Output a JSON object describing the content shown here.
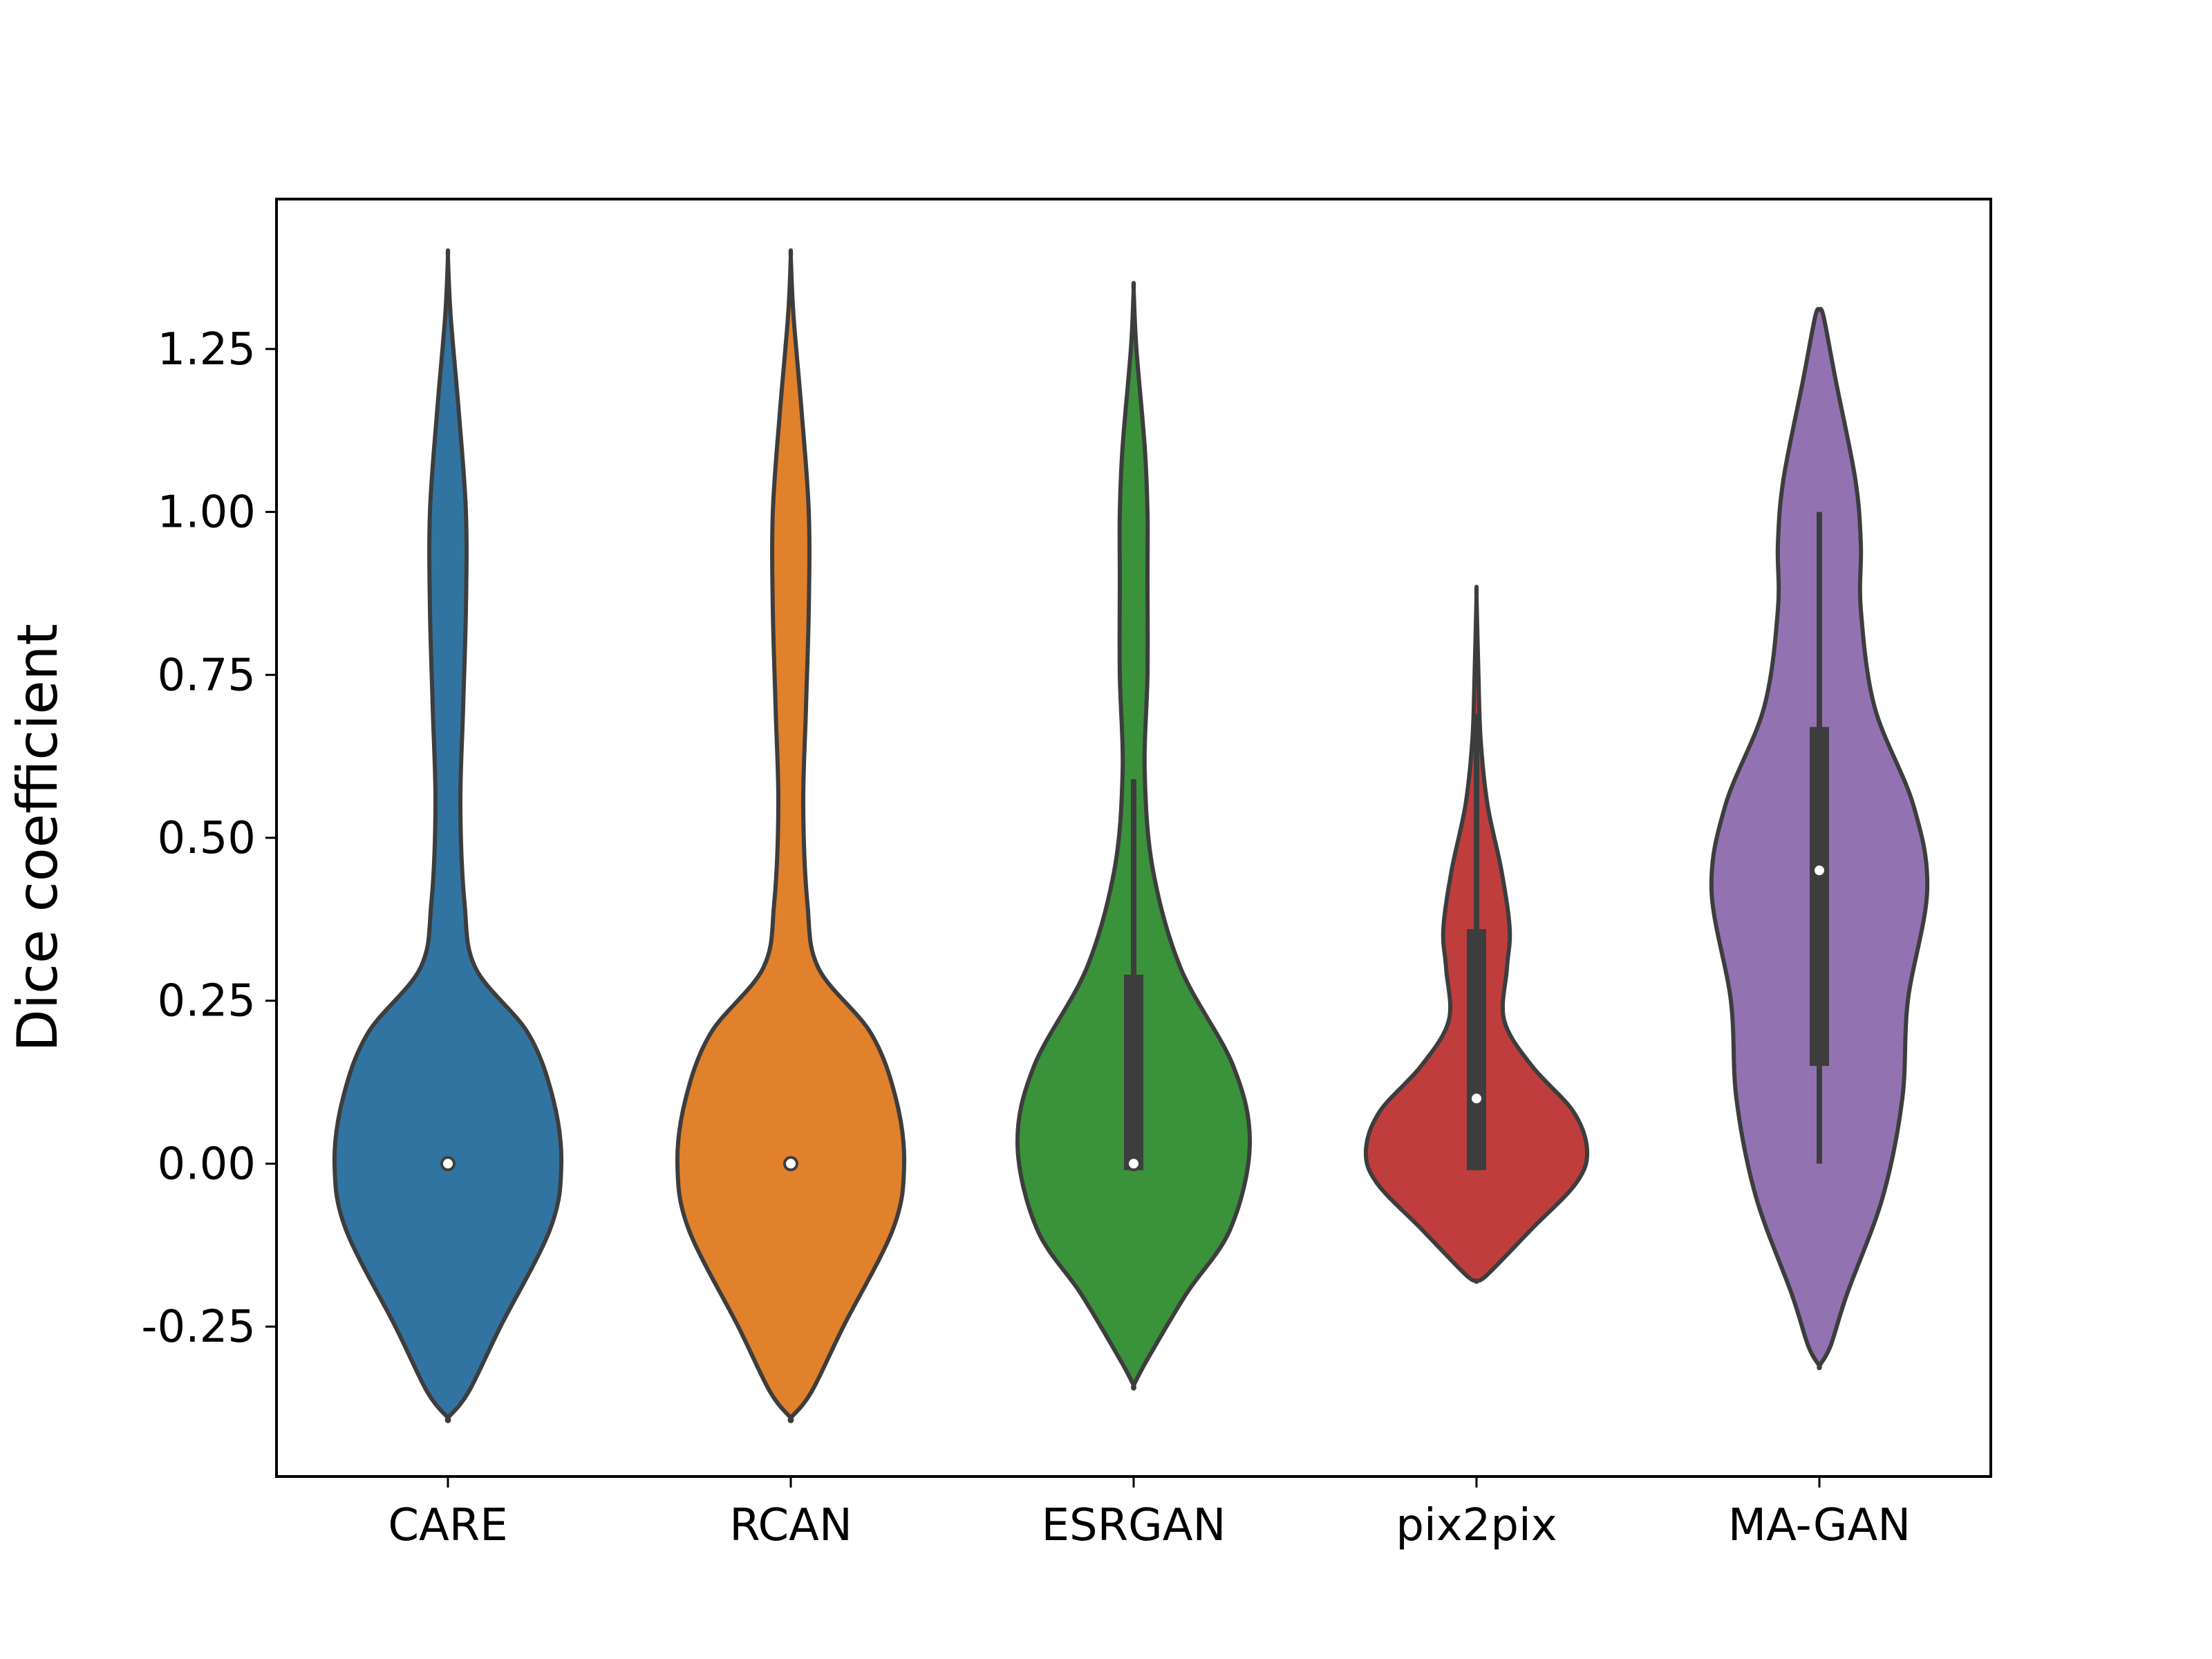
{
  "chart_data": {
    "type": "violin",
    "title": "",
    "xlabel": "",
    "ylabel": "Dice coefficient",
    "ylim": [
      -0.48,
      1.48
    ],
    "yticks": [
      -0.25,
      0.0,
      0.25,
      0.5,
      0.75,
      1.0,
      1.25
    ],
    "ytick_labels": [
      "-0.25",
      "0.00",
      "0.25",
      "0.50",
      "0.75",
      "1.00",
      "1.25"
    ],
    "categories": [
      "CARE",
      "RCAN",
      "ESRGAN",
      "pix2pix",
      "MA-GAN"
    ],
    "grid": false,
    "legend": "none",
    "series": [
      {
        "category": "CARE",
        "color": "#3274a1",
        "min": -0.39,
        "max": 1.39,
        "box": {
          "q1": 0.0,
          "median": 0.0,
          "q3": 0.0,
          "whisker_low": 0.0,
          "whisker_high": 0.0
        },
        "density": [
          [
            -0.39,
            0.0
          ],
          [
            -0.35,
            0.075
          ],
          [
            -0.25,
            0.19
          ],
          [
            -0.1,
            0.37
          ],
          [
            0.0,
            0.41
          ],
          [
            0.1,
            0.38
          ],
          [
            0.2,
            0.29
          ],
          [
            0.3,
            0.1
          ],
          [
            0.4,
            0.06
          ],
          [
            0.55,
            0.045
          ],
          [
            0.7,
            0.055
          ],
          [
            0.85,
            0.065
          ],
          [
            1.0,
            0.065
          ],
          [
            1.15,
            0.04
          ],
          [
            1.3,
            0.01
          ],
          [
            1.39,
            0.0
          ]
        ]
      },
      {
        "category": "RCAN",
        "color": "#e1812c",
        "min": -0.39,
        "max": 1.39,
        "box": {
          "q1": 0.0,
          "median": 0.0,
          "q3": 0.0,
          "whisker_low": 0.0,
          "whisker_high": 0.0
        },
        "density": [
          [
            -0.39,
            0.0
          ],
          [
            -0.35,
            0.075
          ],
          [
            -0.25,
            0.19
          ],
          [
            -0.1,
            0.37
          ],
          [
            0.0,
            0.41
          ],
          [
            0.1,
            0.38
          ],
          [
            0.2,
            0.29
          ],
          [
            0.3,
            0.1
          ],
          [
            0.4,
            0.06
          ],
          [
            0.55,
            0.045
          ],
          [
            0.7,
            0.055
          ],
          [
            0.85,
            0.065
          ],
          [
            1.0,
            0.065
          ],
          [
            1.15,
            0.04
          ],
          [
            1.3,
            0.01
          ],
          [
            1.39,
            0.0
          ]
        ]
      },
      {
        "category": "ESRGAN",
        "color": "#3a923a",
        "min": -0.34,
        "max": 1.34,
        "box": {
          "q1": -0.01,
          "median": 0.0,
          "q3": 0.29,
          "whisker_low": -0.01,
          "whisker_high": 0.59
        },
        "density": [
          [
            -0.34,
            0.0
          ],
          [
            -0.3,
            0.05
          ],
          [
            -0.2,
            0.19
          ],
          [
            -0.1,
            0.35
          ],
          [
            0.03,
            0.42
          ],
          [
            0.15,
            0.36
          ],
          [
            0.3,
            0.17
          ],
          [
            0.45,
            0.07
          ],
          [
            0.6,
            0.04
          ],
          [
            0.75,
            0.05
          ],
          [
            0.9,
            0.05
          ],
          [
            1.0,
            0.05
          ],
          [
            1.1,
            0.04
          ],
          [
            1.25,
            0.01
          ],
          [
            1.34,
            0.0
          ]
        ]
      },
      {
        "category": "pix2pix",
        "color": "#c03d3e",
        "min": -0.18,
        "max": 0.87,
        "box": {
          "q1": -0.01,
          "median": 0.1,
          "q3": 0.36,
          "whisker_low": -0.01,
          "whisker_high": 0.69
        },
        "density": [
          [
            -0.18,
            0.0
          ],
          [
            -0.17,
            0.04
          ],
          [
            -0.1,
            0.2
          ],
          [
            -0.03,
            0.36
          ],
          [
            0.02,
            0.4
          ],
          [
            0.08,
            0.35
          ],
          [
            0.15,
            0.2
          ],
          [
            0.22,
            0.1
          ],
          [
            0.3,
            0.11
          ],
          [
            0.36,
            0.12
          ],
          [
            0.45,
            0.09
          ],
          [
            0.55,
            0.04
          ],
          [
            0.65,
            0.015
          ],
          [
            0.75,
            0.007
          ],
          [
            0.87,
            0.0
          ]
        ]
      },
      {
        "category": "MA-GAN",
        "color": "#9372b2",
        "min": -0.31,
        "max": 1.31,
        "box": {
          "q1": 0.15,
          "median": 0.45,
          "q3": 0.67,
          "whisker_low": 0.0,
          "whisker_high": 1.0
        },
        "density": [
          [
            -0.31,
            0.0
          ],
          [
            -0.28,
            0.04
          ],
          [
            -0.2,
            0.1
          ],
          [
            -0.05,
            0.23
          ],
          [
            0.1,
            0.3
          ],
          [
            0.25,
            0.32
          ],
          [
            0.42,
            0.39
          ],
          [
            0.55,
            0.34
          ],
          [
            0.7,
            0.2
          ],
          [
            0.85,
            0.15
          ],
          [
            0.95,
            0.15
          ],
          [
            1.05,
            0.13
          ],
          [
            1.2,
            0.06
          ],
          [
            1.3,
            0.015
          ],
          [
            1.31,
            0.0
          ]
        ]
      }
    ]
  }
}
